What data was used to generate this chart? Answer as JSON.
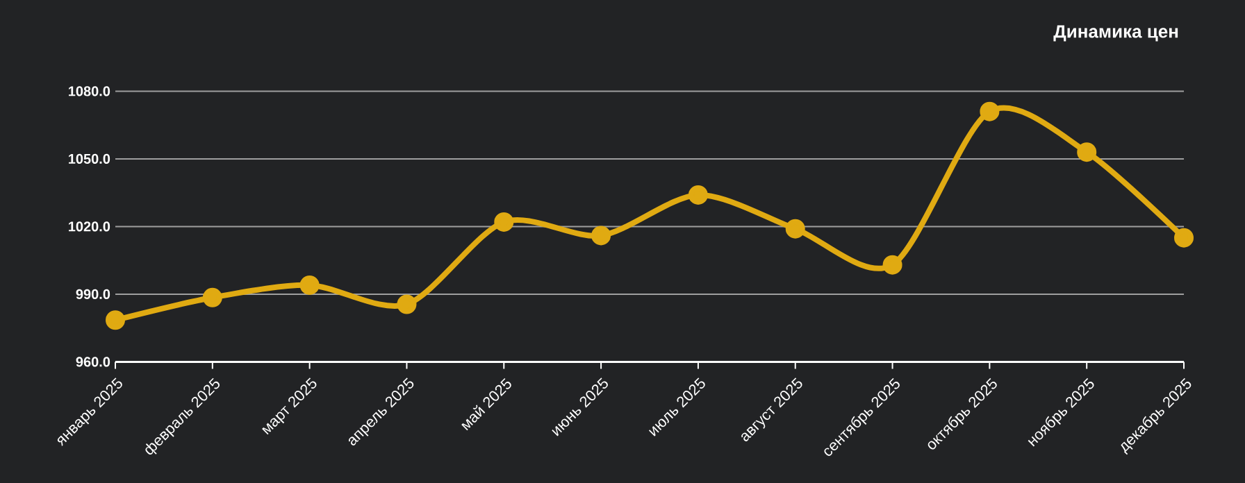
{
  "chart_data": {
    "type": "line",
    "title": "Динамика цен",
    "categories": [
      "январь 2025",
      "февраль 2025",
      "март 2025",
      "апрель 2025",
      "май 2025",
      "июнь 2025",
      "июль 2025",
      "август 2025",
      "сентябрь 2025",
      "октябрь 2025",
      "ноябрь 2025",
      "декабрь 2025"
    ],
    "series": [
      {
        "color": "#e0aa12",
        "values": [
          978.5,
          988.5,
          994,
          985.5,
          1022,
          1016,
          1034,
          1019,
          1003,
          1071,
          1053,
          1015
        ]
      }
    ],
    "ylim": [
      960,
      1080
    ],
    "yticks": [
      {
        "value": 960,
        "label": "960.0"
      },
      {
        "value": 990,
        "label": "990.0"
      },
      {
        "value": 1020,
        "label": "1020.0"
      },
      {
        "value": 1050,
        "label": "1050.0"
      },
      {
        "value": 1080,
        "label": "1080.0"
      }
    ],
    "grid": "y",
    "marker": "circle",
    "line_style": "solid",
    "legend": false
  }
}
